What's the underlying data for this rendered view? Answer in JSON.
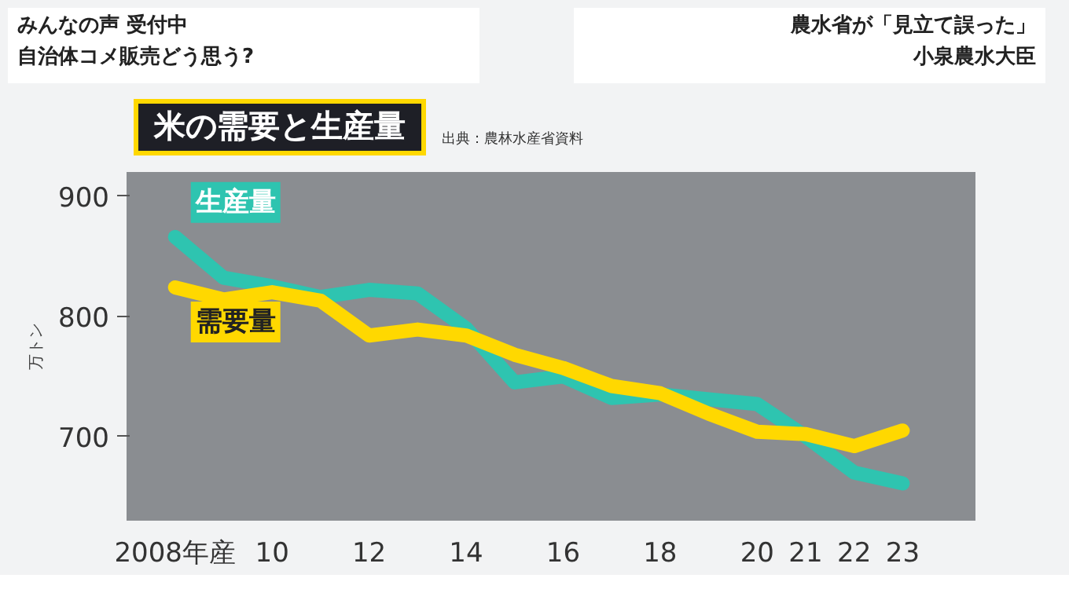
{
  "chart_data": {
    "type": "line",
    "title": "米の需要と生産量",
    "ylabel": "万トン",
    "annotations": [
      "みんなの声 受付中",
      "自治体コメ販売どう思う?",
      "農水省が「見立て誤った」",
      "小泉農水大臣",
      "出典：農林水産省資料"
    ],
    "x": [
      2008,
      2009,
      2010,
      2011,
      2012,
      2013,
      2014,
      2015,
      2016,
      2017,
      2018,
      2019,
      2020,
      2021,
      2022,
      2023
    ],
    "series": [
      {
        "name": "生産量",
        "color": "#2ec4b0",
        "values": [
          866,
          832,
          825,
          816,
          822,
          819,
          790,
          745,
          750,
          732,
          735,
          731,
          727,
          700,
          670,
          661
        ]
      },
      {
        "name": "需要量",
        "color": "#ffd800",
        "values": [
          824,
          814,
          820,
          813,
          784,
          789,
          784,
          768,
          757,
          742,
          736,
          719,
          704,
          702,
          692,
          705
        ]
      }
    ],
    "xlim": [
      2007,
      2024.5
    ],
    "ylim": [
      630,
      920
    ],
    "xticks": [
      {
        "value": 2008,
        "label": "2008年産"
      },
      {
        "value": 2010,
        "label": "10"
      },
      {
        "value": 2012,
        "label": "12"
      },
      {
        "value": 2014,
        "label": "14"
      },
      {
        "value": 2016,
        "label": "16"
      },
      {
        "value": 2018,
        "label": "18"
      },
      {
        "value": 2020,
        "label": "20"
      },
      {
        "value": 2021,
        "label": "21"
      },
      {
        "value": 2022,
        "label": "22"
      },
      {
        "value": 2023,
        "label": "23"
      }
    ],
    "yticks": [
      700,
      800,
      900
    ],
    "grid": false,
    "marker": "none",
    "line_style": "solid"
  }
}
